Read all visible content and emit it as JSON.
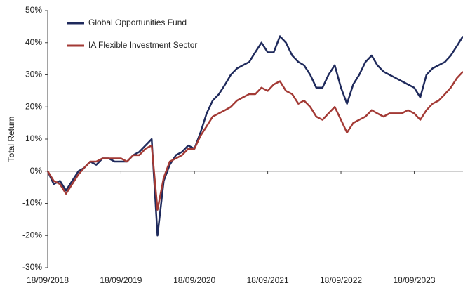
{
  "chart_data": {
    "type": "line",
    "y_label": "Total Return",
    "x": [
      "18/09/2018",
      "18/10/2018",
      "18/11/2018",
      "18/12/2018",
      "18/01/2019",
      "18/02/2019",
      "18/03/2019",
      "18/04/2019",
      "18/05/2019",
      "18/06/2019",
      "18/07/2019",
      "18/08/2019",
      "18/09/2019",
      "18/10/2019",
      "18/11/2019",
      "18/12/2019",
      "18/01/2020",
      "18/02/2020",
      "18/03/2020",
      "18/04/2020",
      "18/05/2020",
      "18/06/2020",
      "18/07/2020",
      "18/08/2020",
      "18/09/2020",
      "18/10/2020",
      "18/11/2020",
      "18/12/2020",
      "18/01/2021",
      "18/02/2021",
      "18/03/2021",
      "18/04/2021",
      "18/05/2021",
      "18/06/2021",
      "18/07/2021",
      "18/08/2021",
      "18/09/2021",
      "18/10/2021",
      "18/11/2021",
      "18/12/2021",
      "18/01/2022",
      "18/02/2022",
      "18/03/2022",
      "18/04/2022",
      "18/05/2022",
      "18/06/2022",
      "18/07/2022",
      "18/08/2022",
      "18/09/2022",
      "18/10/2022",
      "18/11/2022",
      "18/12/2022",
      "18/01/2023",
      "18/02/2023",
      "18/03/2023",
      "18/04/2023",
      "18/05/2023",
      "18/06/2023",
      "18/07/2023",
      "18/08/2023",
      "18/09/2023",
      "18/10/2023",
      "18/11/2023",
      "18/12/2023",
      "18/01/2024",
      "18/02/2024",
      "18/03/2024",
      "18/04/2024",
      "18/05/2024"
    ],
    "series": [
      {
        "name": "Global Opportunities Fund",
        "color": "#1f2a5c",
        "values": [
          0,
          -4,
          -3,
          -6,
          -3,
          0,
          1,
          3,
          2,
          4,
          4,
          3,
          3,
          3,
          5,
          6,
          8,
          10,
          -20,
          -3,
          2,
          5,
          6,
          8,
          7,
          12,
          18,
          22,
          24,
          27,
          30,
          32,
          33,
          34,
          37,
          40,
          37,
          37,
          42,
          40,
          36,
          34,
          33,
          30,
          26,
          26,
          30,
          33,
          26,
          21,
          27,
          30,
          34,
          36,
          33,
          31,
          30,
          29,
          28,
          27,
          26,
          23,
          30,
          32,
          33,
          34,
          36,
          39,
          42
        ]
      },
      {
        "name": "IA Flexible Investment Sector",
        "color": "#a33a35",
        "values": [
          0,
          -3,
          -4,
          -7,
          -4,
          -1,
          1,
          3,
          3,
          4,
          4,
          4,
          4,
          3,
          5,
          5,
          7,
          8,
          -12,
          -2,
          3,
          4,
          5,
          7,
          7,
          11,
          14,
          17,
          18,
          19,
          20,
          22,
          23,
          24,
          24,
          26,
          25,
          27,
          28,
          25,
          24,
          21,
          22,
          20,
          17,
          16,
          18,
          20,
          16,
          12,
          15,
          16,
          17,
          19,
          18,
          17,
          18,
          18,
          18,
          19,
          18,
          16,
          19,
          21,
          22,
          24,
          26,
          29,
          31
        ]
      }
    ],
    "xlim": [
      "18/09/2018",
      "18/05/2024"
    ],
    "xticks": [
      "18/09/2018",
      "18/09/2019",
      "18/09/2020",
      "18/09/2021",
      "18/09/2022",
      "18/09/2023"
    ],
    "ylim": [
      -30,
      50
    ],
    "yticks": [
      {
        "value": -30,
        "label": "-30%"
      },
      {
        "value": -20,
        "label": "-20%"
      },
      {
        "value": -10,
        "label": "-10%"
      },
      {
        "value": 0,
        "label": "0%"
      },
      {
        "value": 10,
        "label": "10%"
      },
      {
        "value": 20,
        "label": "20%"
      },
      {
        "value": 30,
        "label": "30%"
      },
      {
        "value": 40,
        "label": "40%"
      },
      {
        "value": 50,
        "label": "50%"
      }
    ],
    "legend": "upper-left"
  }
}
